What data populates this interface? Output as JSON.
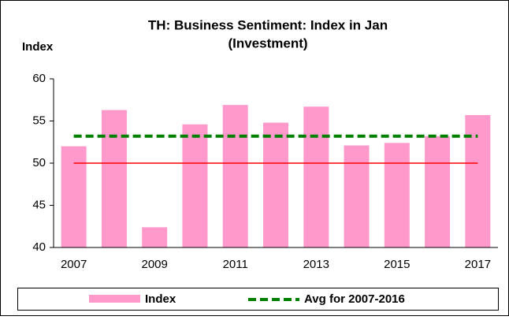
{
  "chart_data": {
    "type": "bar",
    "title": "TH: Business Sentiment: Index in Jan",
    "subtitle": "(Investment)",
    "y_label": "Index",
    "categories": [
      "2007",
      null,
      "2009",
      null,
      "2011",
      null,
      "2013",
      null,
      "2015",
      null,
      "2017"
    ],
    "series": [
      {
        "name": "Index",
        "color": "#ff99cc",
        "values": [
          52,
          56.3,
          42.4,
          54.6,
          56.9,
          54.8,
          56.7,
          52.1,
          52.4,
          53.2,
          55.7
        ]
      }
    ],
    "average": {
      "name": "Avg for 2007-2016",
      "color": "#008000",
      "value": 53.2
    },
    "reference_line": {
      "color": "#ff0000",
      "value": 50
    },
    "ylim": [
      40,
      60
    ],
    "yticks": [
      40,
      45,
      50,
      55,
      60
    ]
  }
}
